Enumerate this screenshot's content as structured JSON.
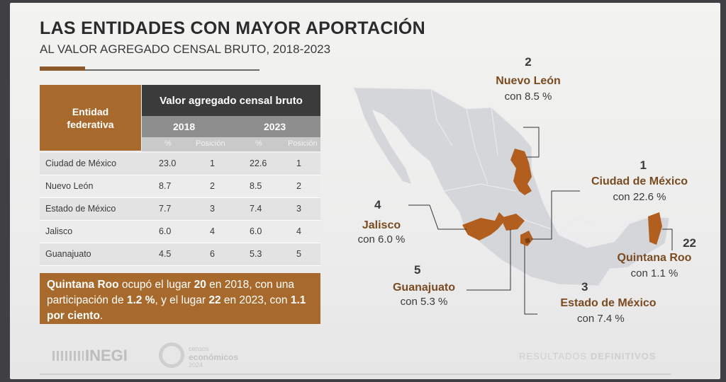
{
  "title": "LAS ENTIDADES CON MAYOR APORTACIÓN",
  "subtitle": "AL VALOR AGREGADO CENSAL BRUTO, 2018-2023",
  "table": {
    "entity_header_line1": "Entidad",
    "entity_header_line2": "federativa",
    "main_header": "Valor agregado censal bruto",
    "year_a": "2018",
    "year_b": "2023",
    "sub_pct": "%",
    "sub_pos": "Posición",
    "rows": [
      {
        "entity": "Ciudad de México",
        "pct2018": "23.0",
        "pos2018": "1",
        "pct2023": "22.6",
        "pos2023": "1"
      },
      {
        "entity": "Nuevo León",
        "pct2018": "8.7",
        "pos2018": "2",
        "pct2023": "8.5",
        "pos2023": "2"
      },
      {
        "entity": "Estado de México",
        "pct2018": "7.7",
        "pos2018": "3",
        "pct2023": "7.4",
        "pos2023": "3"
      },
      {
        "entity": "Jalisco",
        "pct2018": "6.0",
        "pos2018": "4",
        "pct2023": "6.0",
        "pos2023": "4"
      },
      {
        "entity": "Guanajuato",
        "pct2018": "4.5",
        "pos2018": "6",
        "pct2023": "5.3",
        "pos2023": "5"
      }
    ]
  },
  "note": {
    "b1": "Quintana Roo",
    "t1": " ocupó el lugar ",
    "b2": "20",
    "t2": " en 2018, con una participación de ",
    "b3": "1.2 %",
    "t3": ", y el lugar ",
    "b4": "22",
    "t4": " en 2023, con ",
    "b5": "1.1 por ciento",
    "t5": "."
  },
  "map_labels": {
    "nl": {
      "num": "2",
      "name": "Nuevo León",
      "pct": "con 8.5 %"
    },
    "cdmx": {
      "num": "1",
      "name": "Ciudad de México",
      "pct": "con 22.6 %"
    },
    "jal": {
      "num": "4",
      "name": "Jalisco",
      "pct": "con 6.0 %"
    },
    "gto": {
      "num": "5",
      "name": "Guanajuato",
      "pct": "con 5.3 %"
    },
    "qroo": {
      "num": "22",
      "name": "Quintana Roo",
      "pct": "con 1.1 %"
    },
    "edomex": {
      "num": "3",
      "name": "Estado de México",
      "pct": "con 7.4 %"
    }
  },
  "footer": {
    "inegi": "INEGI",
    "censos_line1": "censos",
    "censos_line2": "económicos",
    "censos_line3": "2024",
    "resultados_a": "RESULTADOS ",
    "resultados_b": "DEFINITIVOS"
  },
  "colors": {
    "accent": "#a86a2c",
    "header_dark": "#3b3b3b",
    "map_base": "#d2d4d8",
    "map_highlight": "#b15e1f"
  }
}
